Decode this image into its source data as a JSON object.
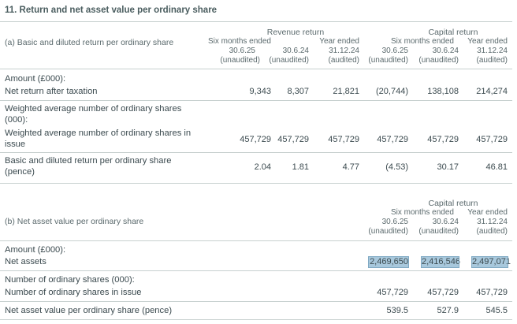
{
  "title": "11. Return and net asset value per ordinary share",
  "section_a": {
    "title": "(a) Basic and diluted return per ordinary share",
    "group_revenue": "Revenue return",
    "group_capital": "Capital return",
    "columns": [
      {
        "l1": "Six months ended",
        "l2": "30.6.25",
        "l3": "(unaudited)"
      },
      {
        "l1": "",
        "l2": "30.6.24",
        "l3": "(unaudited)"
      },
      {
        "l1": "Year ended",
        "l2": "31.12.24",
        "l3": "(audited)"
      },
      {
        "l1": "Six months ended",
        "l2": "30.6.25",
        "l3": "(unaudited)"
      },
      {
        "l1": "",
        "l2": "30.6.24",
        "l3": "(unaudited)"
      },
      {
        "l1": "Year ended",
        "l2": "31.12.24",
        "l3": "(audited)"
      }
    ],
    "amount_label": "Amount (£000):",
    "net_return_label": "Net return after taxation",
    "net_return": [
      "9,343",
      "8,307",
      "21,821",
      "(20,744)",
      "138,108",
      "214,274"
    ],
    "weighted_label": "Weighted average number of ordinary shares (000):",
    "weighted_issue_label": "Weighted average number of ordinary shares in issue",
    "weighted": [
      "457,729",
      "457,729",
      "457,729",
      "457,729",
      "457,729",
      "457,729"
    ],
    "basic_label": "Basic and diluted return per ordinary share (pence)",
    "basic": [
      "2.04",
      "1.81",
      "4.77",
      "(4.53)",
      "30.17",
      "46.81"
    ]
  },
  "section_b": {
    "title": "(b) Net asset value per ordinary share",
    "group_capital": "Capital return",
    "columns": [
      {
        "l1": "Six months ended",
        "l2": "30.6.25",
        "l3": "(unaudited)"
      },
      {
        "l1": "",
        "l2": "30.6.24",
        "l3": "(unaudited)"
      },
      {
        "l1": "Year ended",
        "l2": "31.12.24",
        "l3": "(audited)"
      }
    ],
    "amount_label": "Amount (£000):",
    "net_assets_label": "Net assets",
    "net_assets": [
      "2,469,650",
      "2,416,546",
      "2,497,071"
    ],
    "shares_label": "Number of ordinary shares (000):",
    "shares_issue_label": "Number of ordinary shares in issue",
    "shares": [
      "457,729",
      "457,729",
      "457,729"
    ],
    "nav_label": "Net asset value per ordinary share (pence)",
    "nav": [
      "539.5",
      "527.9",
      "545.5"
    ]
  },
  "highlight_color": "#a8c8dc"
}
